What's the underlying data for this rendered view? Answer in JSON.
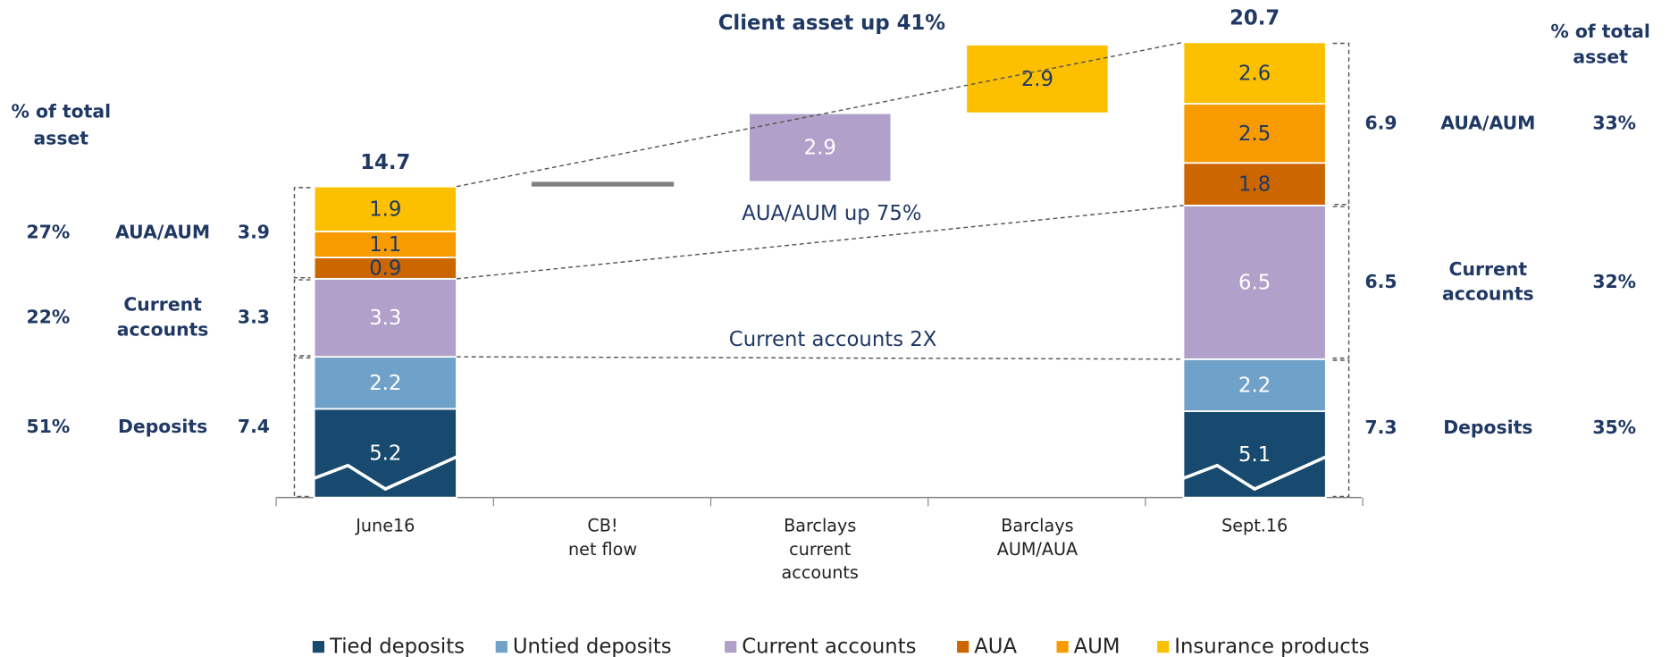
{
  "chart_data": {
    "type": "waterfall",
    "title": "Client asset up 41%",
    "annotations": [
      "AUA/AUM up 75%",
      "Current accounts 2X"
    ],
    "categories": [
      [
        "June16"
      ],
      [
        "CB!",
        "net flow"
      ],
      [
        "Barclays",
        "current",
        "accounts"
      ],
      [
        "Barclays",
        "AUM/AUA"
      ],
      [
        "Sept.16"
      ]
    ],
    "totals": [
      14.7,
      null,
      null,
      null,
      20.7
    ],
    "net_flow": {
      "values": [
        null,
        0.2,
        null,
        null,
        null
      ],
      "color": "#808080"
    },
    "series": [
      {
        "name": "Tied deposits",
        "color": "#174a6e",
        "values": [
          5.2,
          null,
          null,
          null,
          5.1
        ]
      },
      {
        "name": "Untied deposits",
        "color": "#70a1c8",
        "values": [
          2.2,
          null,
          null,
          null,
          2.2
        ]
      },
      {
        "name": "Current accounts",
        "color": "#b1a0c9",
        "values": [
          3.3,
          null,
          2.9,
          null,
          6.5
        ]
      },
      {
        "name": "AUA",
        "color": "#cc6600",
        "values": [
          0.9,
          null,
          null,
          null,
          1.8
        ]
      },
      {
        "name": "AUM",
        "color": "#f89b00",
        "values": [
          1.1,
          null,
          null,
          null,
          2.5
        ]
      },
      {
        "name": "Insurance products",
        "color": "#fcc000",
        "values": [
          1.9,
          null,
          null,
          2.9,
          2.6
        ]
      }
    ],
    "left_panel": {
      "header": [
        "% of total",
        "asset"
      ],
      "rows": [
        {
          "share": "27%",
          "name": [
            "AUA/AUM"
          ],
          "value": 3.9
        },
        {
          "share": "22%",
          "name": [
            "Current",
            "accounts"
          ],
          "value": 3.3
        },
        {
          "share": "51%",
          "name": [
            "Deposits"
          ],
          "value": 7.4
        }
      ]
    },
    "right_panel": {
      "header": [
        "% of total",
        "asset"
      ],
      "rows": [
        {
          "share": "33%",
          "name": [
            "AUA/AUM"
          ],
          "value": 6.9
        },
        {
          "share": "32%",
          "name": [
            "Current",
            "accounts"
          ],
          "value": 6.5
        },
        {
          "share": "35%",
          "name": [
            "Deposits"
          ],
          "value": 7.3
        }
      ]
    }
  }
}
